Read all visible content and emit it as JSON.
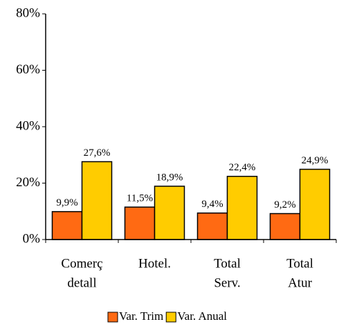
{
  "chart_data": {
    "type": "bar",
    "categories": [
      [
        "Comerç",
        "detall"
      ],
      [
        "Hotel."
      ],
      [
        "Total",
        "Serv."
      ],
      [
        "Total",
        "Atur"
      ]
    ],
    "series": [
      {
        "name": "Var. Trim",
        "color": "#ff6a13",
        "values": [
          9.9,
          11.5,
          9.4,
          9.2
        ],
        "value_labels": [
          "9,9%",
          "11,5%",
          "9,4%",
          "9,2%"
        ]
      },
      {
        "name": "Var. Anual",
        "color": "#ffcc00",
        "values": [
          27.6,
          18.9,
          22.4,
          24.9
        ],
        "value_labels": [
          "27,6%",
          "18,9%",
          "22,4%",
          "24,9%"
        ]
      }
    ],
    "ylim": [
      0,
      80
    ],
    "yticks": [
      {
        "value": 0,
        "label": "0%"
      },
      {
        "value": 20,
        "label": "20%"
      },
      {
        "value": 40,
        "label": "40%"
      },
      {
        "value": 60,
        "label": "60%"
      },
      {
        "value": 80,
        "label": "80%"
      }
    ],
    "grid": false,
    "legend": "bottom"
  }
}
